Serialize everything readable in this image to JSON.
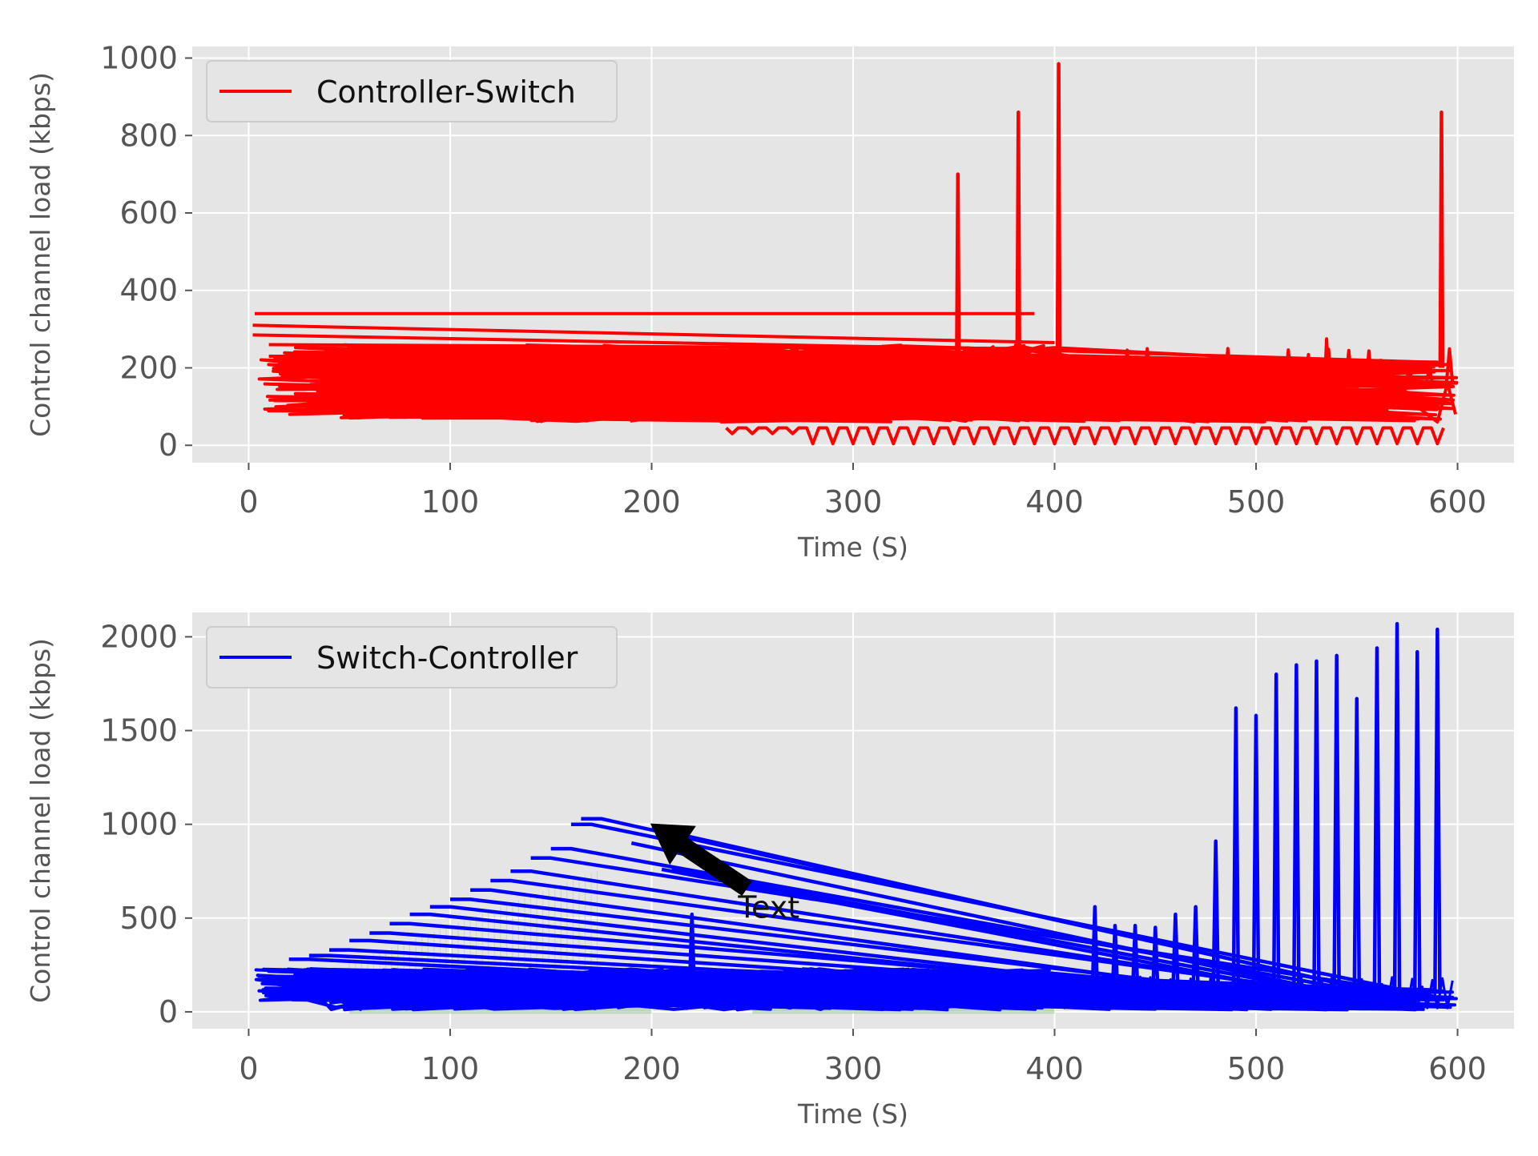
{
  "colors": {
    "background": "#ffffff",
    "plot_background": "#e5e5e5",
    "grid": "#ffffff",
    "tick_text": "#555555",
    "legend_face": "#e5e5e5",
    "legend_edge": "#cccccc",
    "arrow": "#000000",
    "fill_band": "#9dc39d"
  },
  "chart_data": [
    {
      "type": "line",
      "xlabel": "Time (S)",
      "ylabel": "Control channel load (kbps)",
      "xlim": [
        -28,
        628
      ],
      "ylim": [
        -45,
        1030
      ],
      "xticks": [
        0,
        100,
        200,
        300,
        400,
        500,
        600
      ],
      "yticks": [
        0,
        200,
        400,
        600,
        800,
        1000
      ],
      "grid": true,
      "legend": "top-left",
      "series": [
        {
          "name": "Controller-Switch",
          "color": "#ff0000",
          "spikes": [
            {
              "x": 352,
              "y": 700
            },
            {
              "x": 382,
              "y": 860
            },
            {
              "x": 402,
              "y": 985
            },
            {
              "x": 592,
              "y": 860
            }
          ]
        }
      ]
    },
    {
      "type": "line",
      "xlabel": "Time (S)",
      "ylabel": "Control channel load (kbps)",
      "xlim": [
        -28,
        628
      ],
      "ylim": [
        -90,
        2130
      ],
      "xticks": [
        0,
        100,
        200,
        300,
        400,
        500,
        600
      ],
      "yticks": [
        0,
        500,
        1000,
        1500,
        2000
      ],
      "grid": true,
      "legend": "top-left",
      "annotation": {
        "text": "Text",
        "text_xy": [
          250,
          560
        ],
        "arrow_to": [
          200,
          1000
        ]
      },
      "fill_between": [
        [
          50,
          200
        ],
        [
          250,
          400
        ]
      ],
      "series": [
        {
          "name": "Switch-Controller",
          "color": "#0000ff",
          "spikes": [
            {
              "x": 220,
              "y": 520
            },
            {
              "x": 420,
              "y": 560
            },
            {
              "x": 430,
              "y": 460
            },
            {
              "x": 440,
              "y": 460
            },
            {
              "x": 450,
              "y": 450
            },
            {
              "x": 460,
              "y": 520
            },
            {
              "x": 470,
              "y": 560
            },
            {
              "x": 480,
              "y": 910
            },
            {
              "x": 490,
              "y": 1620
            },
            {
              "x": 500,
              "y": 1580
            },
            {
              "x": 510,
              "y": 1800
            },
            {
              "x": 520,
              "y": 1850
            },
            {
              "x": 530,
              "y": 1870
            },
            {
              "x": 540,
              "y": 1900
            },
            {
              "x": 550,
              "y": 1670
            },
            {
              "x": 560,
              "y": 1940
            },
            {
              "x": 570,
              "y": 2070
            },
            {
              "x": 580,
              "y": 1920
            },
            {
              "x": 590,
              "y": 2040
            }
          ],
          "fan_starts": [
            {
              "x": 30,
              "y": 280
            },
            {
              "x": 40,
              "y": 300
            },
            {
              "x": 50,
              "y": 330
            },
            {
              "x": 60,
              "y": 380
            },
            {
              "x": 70,
              "y": 420
            },
            {
              "x": 80,
              "y": 470
            },
            {
              "x": 90,
              "y": 520
            },
            {
              "x": 100,
              "y": 560
            },
            {
              "x": 110,
              "y": 600
            },
            {
              "x": 120,
              "y": 650
            },
            {
              "x": 130,
              "y": 700
            },
            {
              "x": 140,
              "y": 750
            },
            {
              "x": 150,
              "y": 820
            },
            {
              "x": 160,
              "y": 870
            },
            {
              "x": 170,
              "y": 1000
            },
            {
              "x": 175,
              "y": 1030
            }
          ]
        }
      ]
    }
  ]
}
